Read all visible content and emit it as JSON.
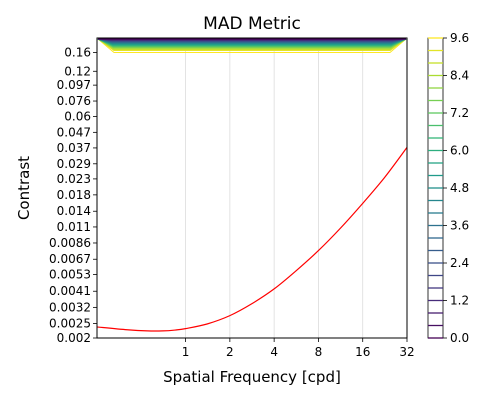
{
  "chart_data": [
    {
      "type": "line",
      "title": "MAD Metric",
      "xlabel": "Spatial Frequency [cpd]",
      "ylabel": "Contrast",
      "x_scale": "log2",
      "y_scale": "log",
      "xlim": [
        0.25,
        32
      ],
      "ylim": [
        0.002,
        0.2
      ],
      "x_ticks": [
        1,
        2,
        4,
        8,
        16,
        32
      ],
      "x_tick_labels": [
        "1",
        "2",
        "4",
        "8",
        "16",
        "32"
      ],
      "y_ticks": [
        0.002,
        0.0025,
        0.0032,
        0.0041,
        0.0053,
        0.0067,
        0.0086,
        0.011,
        0.014,
        0.018,
        0.023,
        0.029,
        0.037,
        0.047,
        0.06,
        0.076,
        0.097,
        0.12,
        0.16
      ],
      "y_tick_labels": [
        "0.002",
        "0.0025",
        "0.0032",
        "0.0041",
        "0.0053",
        "0.0067",
        "0.0086",
        "0.011",
        "0.014",
        "0.018",
        "0.023",
        "0.029",
        "0.037",
        "0.047",
        "0.06",
        "0.076",
        "0.097",
        "0.12",
        "0.16"
      ],
      "grid": "vertical",
      "series": [
        {
          "color": "#ff0000",
          "x": [
            0.25,
            0.4,
            0.55,
            0.7,
            0.85,
            1,
            1.4,
            2,
            2.8,
            4,
            5.6,
            8,
            11.3,
            16,
            22.6,
            32
          ],
          "y": [
            0.00237,
            0.00227,
            0.00223,
            0.00223,
            0.00226,
            0.00231,
            0.00248,
            0.00282,
            0.00337,
            0.00425,
            0.00558,
            0.00765,
            0.0108,
            0.0158,
            0.0236,
            0.0373
          ]
        }
      ],
      "contour": {
        "colormap": "viridis",
        "levels": [
          0.0,
          0.4,
          0.8,
          1.2,
          1.6,
          2.0,
          2.4,
          2.8,
          3.2,
          3.6,
          4.0,
          4.4,
          4.8,
          5.2,
          5.6,
          6.0,
          6.4,
          6.8,
          7.2,
          7.6,
          8.0,
          8.4,
          8.8,
          9.2,
          9.6
        ],
        "contrast_range": [
          0.16,
          0.2
        ],
        "note_region": "top band"
      }
    },
    {
      "type": "colorbar",
      "colormap": "viridis",
      "range": [
        0.0,
        9.6
      ],
      "ticks": [
        0.0,
        1.2,
        2.4,
        3.6,
        4.8,
        6.0,
        7.2,
        8.4,
        9.6
      ],
      "tick_labels": [
        "0.0",
        "1.2",
        "2.4",
        "3.6",
        "4.8",
        "6.0",
        "7.2",
        "8.4",
        "9.6"
      ],
      "levels": [
        0.0,
        0.4,
        0.8,
        1.2,
        1.6,
        2.0,
        2.4,
        2.8,
        3.2,
        3.6,
        4.0,
        4.4,
        4.8,
        5.2,
        5.6,
        6.0,
        6.4,
        6.8,
        7.2,
        7.6,
        8.0,
        8.4,
        8.8,
        9.2,
        9.6
      ]
    }
  ]
}
